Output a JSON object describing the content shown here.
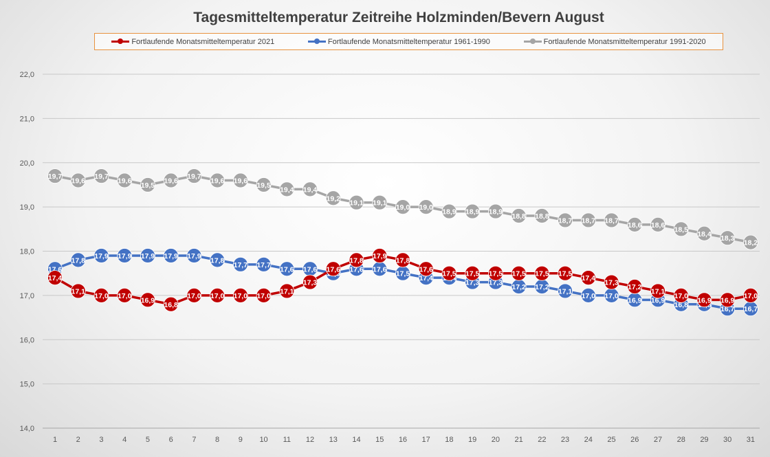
{
  "chart_data": {
    "type": "line",
    "title": "Tagesmitteltemperatur Zeitreihe Holzminden/Bevern August",
    "xlabel": "",
    "ylabel": "",
    "ylim": [
      14.0,
      22.0
    ],
    "y_ticks": [
      "14,0",
      "15,0",
      "16,0",
      "17,0",
      "18,0",
      "19,0",
      "20,0",
      "21,0",
      "22,0"
    ],
    "y_tick_values": [
      14,
      15,
      16,
      17,
      18,
      19,
      20,
      21,
      22
    ],
    "x": [
      1,
      2,
      3,
      4,
      5,
      6,
      7,
      8,
      9,
      10,
      11,
      12,
      13,
      14,
      15,
      16,
      17,
      18,
      19,
      20,
      21,
      22,
      23,
      24,
      25,
      26,
      27,
      28,
      29,
      30,
      31
    ],
    "legend_position": "top",
    "grid": true,
    "series": [
      {
        "name": "Fortlaufende Monatsmitteltemperatur 2021",
        "color": "#c00000",
        "values": [
          17.4,
          17.1,
          17.0,
          17.0,
          16.9,
          16.8,
          17.0,
          17.0,
          17.0,
          17.0,
          17.1,
          17.3,
          17.6,
          17.8,
          17.9,
          17.8,
          17.6,
          17.5,
          17.5,
          17.5,
          17.5,
          17.5,
          17.5,
          17.4,
          17.3,
          17.2,
          17.1,
          17.0,
          16.9,
          16.9,
          17.0
        ]
      },
      {
        "name": "Fortlaufende Monatsmitteltemperatur 1961-1990",
        "color": "#4472c4",
        "values": [
          17.6,
          17.8,
          17.9,
          17.9,
          17.9,
          17.9,
          17.9,
          17.8,
          17.7,
          17.7,
          17.6,
          17.6,
          17.5,
          17.6,
          17.6,
          17.5,
          17.4,
          17.4,
          17.3,
          17.3,
          17.2,
          17.2,
          17.1,
          17.0,
          17.0,
          16.9,
          16.9,
          16.8,
          16.8,
          16.7,
          16.7
        ]
      },
      {
        "name": "Fortlaufende Monatsmitteltemperatur 1991-2020",
        "color": "#a5a5a5",
        "values": [
          19.7,
          19.6,
          19.7,
          19.6,
          19.5,
          19.6,
          19.7,
          19.6,
          19.6,
          19.5,
          19.4,
          19.4,
          19.2,
          19.1,
          19.1,
          19.0,
          19.0,
          18.9,
          18.9,
          18.9,
          18.8,
          18.8,
          18.7,
          18.7,
          18.7,
          18.6,
          18.6,
          18.5,
          18.4,
          18.3,
          18.2
        ]
      }
    ]
  }
}
